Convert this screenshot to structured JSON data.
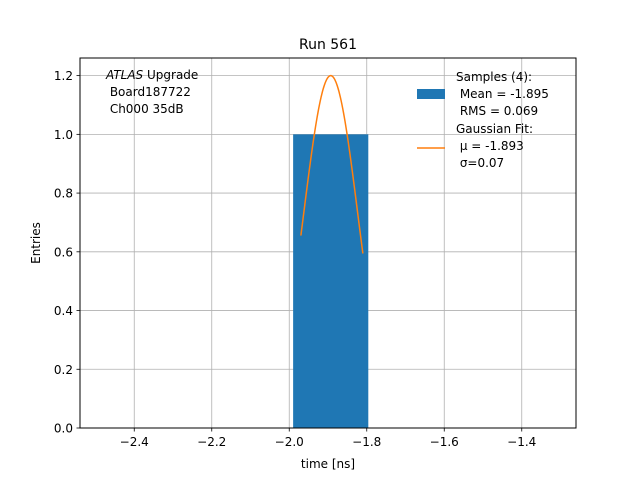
{
  "chart_data": {
    "type": "bar",
    "title": "Run 561",
    "xlabel": "time [ns]",
    "ylabel": "Entries",
    "xlim": [
      -2.54,
      -1.26
    ],
    "ylim": [
      0.0,
      1.26
    ],
    "xticks": [
      -2.4,
      -2.2,
      -2.0,
      -1.8,
      -1.6,
      -1.4
    ],
    "xtick_labels": [
      "−2.4",
      "−2.2",
      "−2.0",
      "−1.8",
      "−1.6",
      "−1.4"
    ],
    "yticks": [
      0.0,
      0.2,
      0.4,
      0.6,
      0.8,
      1.0,
      1.2
    ],
    "ytick_labels": [
      "0.0",
      "0.2",
      "0.4",
      "0.6",
      "0.8",
      "1.0",
      "1.2"
    ],
    "grid": true,
    "bars": [
      {
        "x_left": -1.99,
        "x_right": -1.796,
        "value": 1.0
      }
    ],
    "fit": {
      "mu": -1.893,
      "sigma": 0.07,
      "amplitude": 1.2,
      "x_from": -1.97,
      "x_to": -1.81
    },
    "annotation": {
      "lines": [
        {
          "italic": "ATLAS",
          "rest": " Upgrade"
        },
        {
          "italic": "",
          "rest": " Board187722"
        },
        {
          "italic": "",
          "rest": " Ch000 35dB"
        }
      ]
    },
    "legend": {
      "position": "top-right",
      "entries": [
        {
          "kind": "patch",
          "lines": [
            "Samples (4):",
            " Mean = -1.895",
            " RMS = 0.069"
          ]
        },
        {
          "kind": "line",
          "lines": [
            "Gaussian Fit:",
            " μ = -1.893",
            " σ=0.07"
          ]
        }
      ]
    },
    "colors": {
      "bar": "#1f77b4",
      "fit": "#ff7f0e",
      "grid": "#b0b0b0",
      "axes": "#000000"
    }
  }
}
